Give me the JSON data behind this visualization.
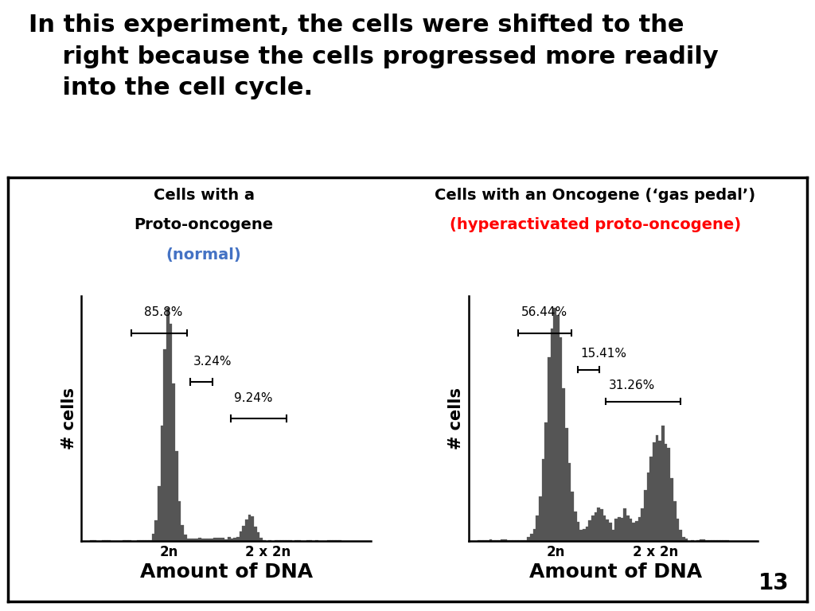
{
  "title_line1": "In this experiment, the cells were shifted to the",
  "title_line2": "right because the cells progressed more readily",
  "title_line3": "into the cell cycle.",
  "title_fontsize": 22,
  "title_color": "#000000",
  "panel_left_title1": "Cells with a",
  "panel_left_title2": "Proto-oncogene",
  "panel_left_title3": "(normal)",
  "panel_left_title_color1": "#000000",
  "panel_left_title_color3": "#4472C4",
  "panel_right_title1": "Cells with an Oncogene (‘gas pedal’)",
  "panel_right_title2": "(hyperactivated proto-oncogene)",
  "panel_right_title_color1": "#000000",
  "panel_right_title_color2": "#FF0000",
  "xlabel": "Amount of DNA",
  "ylabel": "# cells",
  "slide_number": "13",
  "left_pct1": "85.8%",
  "left_pct2": "3.24%",
  "left_pct3": "9.24%",
  "right_pct1": "56.44%",
  "right_pct2": "15.41%",
  "right_pct3": "31.26%",
  "hist_color": "#555555",
  "background_color": "#FFFFFF",
  "box_color": "#000000"
}
